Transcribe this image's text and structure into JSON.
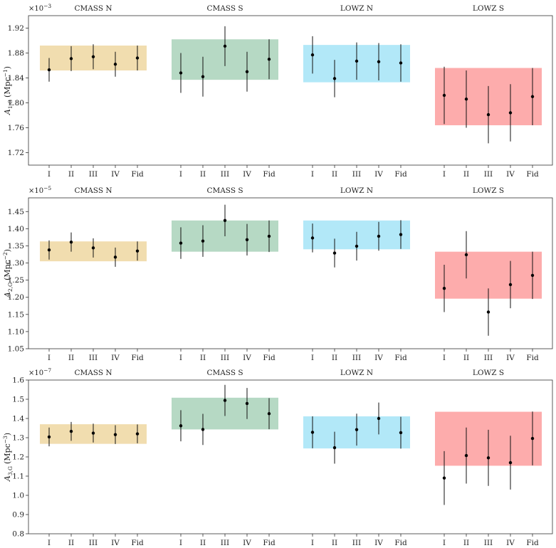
{
  "chart_data": [
    {
      "type": "scatter",
      "ylabel": "A_{1,G} (Mpc^{-1})",
      "ylabel_main": "A",
      "ylabel_sub": "1,G",
      "ylabel_units": "(Mpc",
      "ylabel_exp": "−1",
      "ylabel_close": ")",
      "scale_label": "×10",
      "scale_exp": "−3",
      "ylim": [
        1.7,
        1.94
      ],
      "yticks": [
        "1.72",
        "1.76",
        "1.80",
        "1.84",
        "1.88",
        "1.92"
      ],
      "ytick_values": [
        1.72,
        1.76,
        1.8,
        1.84,
        1.88,
        1.92
      ],
      "categories": [
        "I",
        "II",
        "III",
        "IV",
        "Fid"
      ],
      "groups": [
        {
          "name": "CMASS N",
          "color": "#e8c77a",
          "band": [
            1.852,
            1.892
          ],
          "values": [
            1.853,
            1.871,
            1.874,
            1.862,
            1.872
          ],
          "errors": [
            0.019,
            0.02,
            0.02,
            0.02,
            0.02
          ]
        },
        {
          "name": "CMASS S",
          "color": "#86bf9d",
          "band": [
            1.837,
            1.902
          ],
          "values": [
            1.848,
            1.842,
            1.891,
            1.85,
            1.87
          ],
          "errors": [
            0.032,
            0.032,
            0.032,
            0.032,
            0.032
          ]
        },
        {
          "name": "LOWZ N",
          "color": "#7fd8f4",
          "band": [
            1.833,
            1.893
          ],
          "values": [
            1.877,
            1.839,
            1.867,
            1.866,
            1.864
          ],
          "errors": [
            0.03,
            0.03,
            0.03,
            0.03,
            0.03
          ]
        },
        {
          "name": "LOWZ S",
          "color": "#fb7575",
          "band": [
            1.764,
            1.856
          ],
          "values": [
            1.812,
            1.806,
            1.781,
            1.784,
            1.81
          ],
          "errors": [
            0.046,
            0.046,
            0.046,
            0.046,
            0.046
          ]
        }
      ]
    },
    {
      "type": "scatter",
      "ylabel": "A_{2,G} (Mpc^{-2})",
      "ylabel_main": "A",
      "ylabel_sub": "2,G",
      "ylabel_units": "(Mpc",
      "ylabel_exp": "−2",
      "ylabel_close": ")",
      "scale_label": "×10",
      "scale_exp": "−5",
      "ylim": [
        1.05,
        1.49
      ],
      "yticks": [
        "1.05",
        "1.10",
        "1.15",
        "1.20",
        "1.25",
        "1.30",
        "1.35",
        "1.40",
        "1.45"
      ],
      "ytick_values": [
        1.05,
        1.1,
        1.15,
        1.2,
        1.25,
        1.3,
        1.35,
        1.4,
        1.45
      ],
      "categories": [
        "I",
        "II",
        "III",
        "IV",
        "Fid"
      ],
      "groups": [
        {
          "name": "CMASS N",
          "color": "#e8c77a",
          "band": [
            1.305,
            1.363
          ],
          "values": [
            1.338,
            1.361,
            1.344,
            1.317,
            1.335
          ],
          "errors": [
            0.028,
            0.028,
            0.028,
            0.028,
            0.028
          ]
        },
        {
          "name": "CMASS S",
          "color": "#86bf9d",
          "band": [
            1.333,
            1.424
          ],
          "values": [
            1.358,
            1.364,
            1.424,
            1.368,
            1.378
          ],
          "errors": [
            0.046,
            0.046,
            0.046,
            0.046,
            0.046
          ]
        },
        {
          "name": "LOWZ N",
          "color": "#7fd8f4",
          "band": [
            1.34,
            1.424
          ],
          "values": [
            1.373,
            1.329,
            1.349,
            1.378,
            1.383
          ],
          "errors": [
            0.042,
            0.042,
            0.042,
            0.042,
            0.042
          ]
        },
        {
          "name": "LOWZ S",
          "color": "#fb7575",
          "band": [
            1.196,
            1.333
          ],
          "values": [
            1.226,
            1.324,
            1.157,
            1.237,
            1.264
          ],
          "errors": [
            0.069,
            0.069,
            0.069,
            0.069,
            0.069
          ]
        }
      ]
    },
    {
      "type": "scatter",
      "ylabel": "A_{3,G} (Mpc^{-3})",
      "ylabel_main": "A",
      "ylabel_sub": "3,G",
      "ylabel_units": "(Mpc",
      "ylabel_exp": "−3",
      "ylabel_close": ")",
      "scale_label": "×10",
      "scale_exp": "−7",
      "ylim": [
        0.8,
        1.6
      ],
      "yticks": [
        "0.8",
        "0.9",
        "1.0",
        "1.1",
        "1.2",
        "1.3",
        "1.4",
        "1.5",
        "1.6"
      ],
      "ytick_values": [
        0.8,
        0.9,
        1.0,
        1.1,
        1.2,
        1.3,
        1.4,
        1.5,
        1.6
      ],
      "categories": [
        "I",
        "II",
        "III",
        "IV",
        "Fid"
      ],
      "groups": [
        {
          "name": "CMASS N",
          "color": "#e8c77a",
          "band": [
            1.268,
            1.37
          ],
          "values": [
            1.304,
            1.333,
            1.324,
            1.316,
            1.32
          ],
          "errors": [
            0.049,
            0.049,
            0.049,
            0.049,
            0.049
          ]
        },
        {
          "name": "CMASS S",
          "color": "#86bf9d",
          "band": [
            1.343,
            1.508
          ],
          "values": [
            1.362,
            1.343,
            1.494,
            1.478,
            1.425
          ],
          "errors": [
            0.081,
            0.081,
            0.081,
            0.081,
            0.081
          ]
        },
        {
          "name": "LOWZ N",
          "color": "#7fd8f4",
          "band": [
            1.244,
            1.411
          ],
          "values": [
            1.328,
            1.248,
            1.342,
            1.4,
            1.326
          ],
          "errors": [
            0.083,
            0.083,
            0.083,
            0.083,
            0.083
          ]
        },
        {
          "name": "LOWZ S",
          "color": "#fb7575",
          "band": [
            1.154,
            1.435
          ],
          "values": [
            1.09,
            1.207,
            1.195,
            1.17,
            1.296
          ],
          "errors": [
            0.14,
            0.146,
            0.146,
            0.14,
            0.14
          ]
        }
      ]
    }
  ]
}
